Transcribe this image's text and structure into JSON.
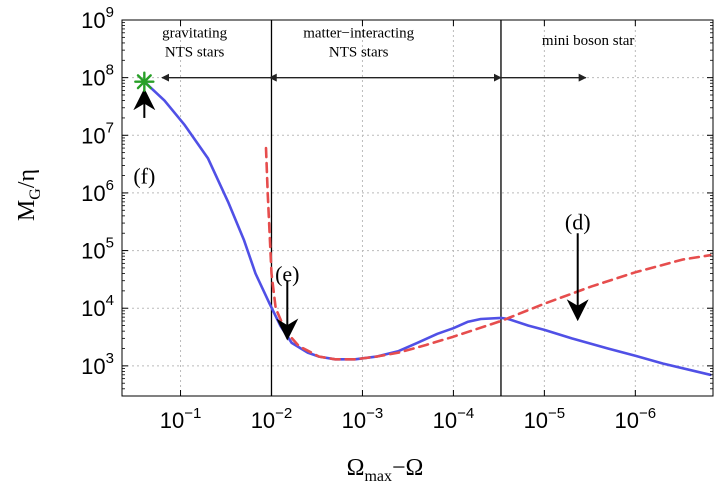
{
  "chart_data": {
    "type": "line",
    "title": "",
    "xlabel": {
      "main": "Ω",
      "sub": "max",
      "rest": "−Ω"
    },
    "ylabel": {
      "main": "M",
      "sub": "G",
      "rest": "/η"
    },
    "x_scale": "log-reversed",
    "y_scale": "log",
    "xlim": [
      0.44,
      1.4e-07
    ],
    "ylim": [
      300,
      1000000000
    ],
    "grid": true,
    "x_ticks": [
      {
        "value": 0.1,
        "base": "10",
        "exp": "−1"
      },
      {
        "value": 0.01,
        "base": "10",
        "exp": "−2"
      },
      {
        "value": 0.001,
        "base": "10",
        "exp": "−3"
      },
      {
        "value": 0.0001,
        "base": "10",
        "exp": "−4"
      },
      {
        "value": 1e-05,
        "base": "10",
        "exp": "−5"
      },
      {
        "value": 1e-06,
        "base": "10",
        "exp": "−6"
      }
    ],
    "y_ticks": [
      {
        "value": 1000,
        "base": "10",
        "exp": "3"
      },
      {
        "value": 10000,
        "base": "10",
        "exp": "4"
      },
      {
        "value": 100000,
        "base": "10",
        "exp": "5"
      },
      {
        "value": 1000000,
        "base": "10",
        "exp": "6"
      },
      {
        "value": 10000000,
        "base": "10",
        "exp": "7"
      },
      {
        "value": 100000000,
        "base": "10",
        "exp": "8"
      },
      {
        "value": 1000000000,
        "base": "10",
        "exp": "9"
      }
    ],
    "series": [
      {
        "color": "#5050e6",
        "style": "solid",
        "points": [
          [
            0.25,
            85000000
          ],
          [
            0.15,
            40000000
          ],
          [
            0.09,
            15000000
          ],
          [
            0.05,
            4000000
          ],
          [
            0.03,
            700000
          ],
          [
            0.02,
            150000
          ],
          [
            0.015,
            40000
          ],
          [
            0.0105,
            12000
          ],
          [
            0.008,
            5000
          ],
          [
            0.006,
            2500
          ],
          [
            0.004,
            1700
          ],
          [
            0.003,
            1450
          ],
          [
            0.002,
            1300
          ],
          [
            0.0012,
            1300
          ],
          [
            0.0007,
            1450
          ],
          [
            0.0004,
            1800
          ],
          [
            0.00025,
            2500
          ],
          [
            0.00015,
            3600
          ],
          [
            0.0001,
            4500
          ],
          [
            7e-05,
            5800
          ],
          [
            5e-05,
            6500
          ],
          [
            3e-05,
            6800
          ],
          [
            2.5e-05,
            6500
          ],
          [
            1.5e-05,
            5000
          ],
          [
            1e-05,
            4200
          ],
          [
            5e-06,
            3000
          ],
          [
            2e-06,
            2000
          ],
          [
            1e-06,
            1500
          ],
          [
            5e-07,
            1100
          ],
          [
            1.5e-07,
            700
          ]
        ]
      },
      {
        "color": "#e64d4d",
        "style": "dashed",
        "points": [
          [
            0.0115,
            6000000
          ],
          [
            0.011,
            1000000
          ],
          [
            0.0105,
            200000
          ],
          [
            0.01,
            40000
          ],
          [
            0.009,
            10000
          ],
          [
            0.007,
            4000
          ],
          [
            0.005,
            2200
          ],
          [
            0.003,
            1450
          ],
          [
            0.002,
            1300
          ],
          [
            0.0012,
            1300
          ],
          [
            0.0007,
            1450
          ],
          [
            0.0004,
            1700
          ],
          [
            0.0002,
            2300
          ],
          [
            0.0001,
            3200
          ],
          [
            3e-05,
            6000
          ],
          [
            1e-05,
            12000
          ],
          [
            3e-06,
            24000
          ],
          [
            1e-06,
            42000
          ],
          [
            3e-07,
            70000
          ],
          [
            1.5e-07,
            83000
          ]
        ]
      }
    ],
    "marker": {
      "x": 0.25,
      "y": 85000000,
      "symbol": "star",
      "color": "#28a028"
    },
    "vertical_lines": [
      0.01,
      3e-05
    ],
    "regions": [
      {
        "lines": [
          "gravitating",
          "NTS stars"
        ],
        "x": 0.07,
        "y": 500000000
      },
      {
        "lines": [
          "matter−interacting",
          "NTS stars"
        ],
        "x": 0.0011,
        "y": 500000000
      },
      {
        "lines": [
          "mini boson star"
        ],
        "x": 3.3e-06,
        "y": 370000000
      }
    ],
    "range_arrows": [
      {
        "from": 0.16,
        "to": 0.0105,
        "y": 100000000,
        "heads": "left"
      },
      {
        "from": 0.0105,
        "to": 3e-05,
        "y": 100000000,
        "heads": "both"
      },
      {
        "from": 3e-05,
        "to": 3.5e-06,
        "y": 100000000,
        "heads": "right"
      }
    ],
    "annotations": [
      {
        "label": "(f)",
        "x": 0.25,
        "label_y": 2000000,
        "arrow_from": 20000000,
        "arrow_to": 60000000,
        "dir": "up"
      },
      {
        "label": "(e)",
        "x": 0.0067,
        "label_y": 40000,
        "arrow_from": 30000,
        "arrow_to": 3000,
        "dir": "down"
      },
      {
        "label": "(d)",
        "x": 4.3e-06,
        "label_y": 320000,
        "arrow_from": 200000,
        "arrow_to": 6500,
        "dir": "down"
      }
    ]
  }
}
